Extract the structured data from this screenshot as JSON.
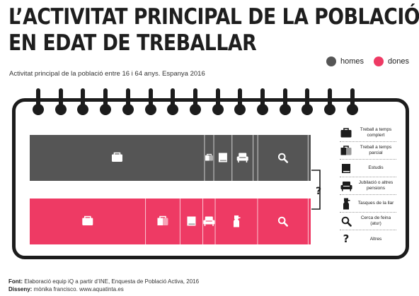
{
  "title": {
    "line1": "L’ACTIVITAT PRINCIPAL DE LA POBLACIÓ",
    "line2": "EN EDAT DE TREBALLAR"
  },
  "subtitle": "Activitat principal de la població entre 16 i 64 anys. Espanya 2016",
  "legend": [
    {
      "label": "homes",
      "color": "#555555"
    },
    {
      "label": "dones",
      "color": "#ee3a64"
    }
  ],
  "chart_data": {
    "type": "bar",
    "orientation": "horizontal-stacked",
    "categories": [
      "Treball a temps complert",
      "Treball a temps parcial",
      "Estudis",
      "Jubilació o altres pensions",
      "Tasques de la llar",
      "Cerca de feina (atur)",
      "Altres"
    ],
    "series": [
      {
        "name": "homes",
        "color": "#555555",
        "values": [
          60.4,
          3.2,
          6.3,
          7.3,
          1.6,
          17.4,
          0.9
        ]
      },
      {
        "name": "dones",
        "color": "#ee3a64",
        "values": [
          41.2,
          12.3,
          8.1,
          4.4,
          15.1,
          18.0,
          0.9
        ]
      }
    ],
    "unit": "%",
    "xlim": [
      0,
      100
    ]
  },
  "key": [
    {
      "label": "Treball a temps complert",
      "icon": "briefcase-icon"
    },
    {
      "label": "Treball a temps parcial",
      "icon": "half-briefcase-icon"
    },
    {
      "label": "Estudis",
      "icon": "book-icon"
    },
    {
      "label": "Jubilació o altres pensions",
      "icon": "armchair-icon"
    },
    {
      "label": "Tasques de la llar",
      "icon": "spray-bottle-icon"
    },
    {
      "label": "Cerca de feina (atur)",
      "icon": "magnifier-icon"
    },
    {
      "label": "Altres",
      "icon": "question-icon"
    }
  ],
  "question_mark": "?",
  "footer": {
    "font_label": "Font:",
    "font_text": "Elaboració equip iQ a partir d’INE, Enquesta de Població Activa, 2016",
    "design_label": "Disseny:",
    "design_text": "mònika francisco. www.aquatinta.es"
  }
}
